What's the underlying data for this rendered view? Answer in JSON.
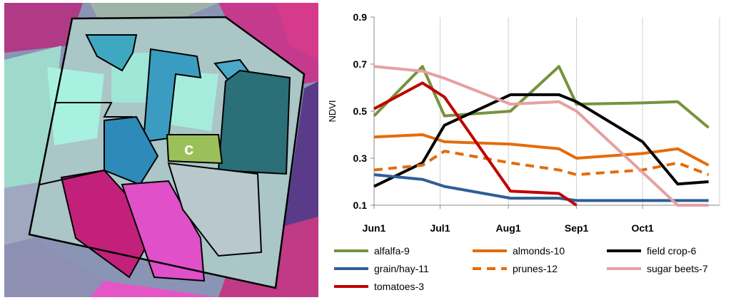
{
  "figure": {
    "map": {
      "label": "c",
      "colors": {
        "magenta": "#c23a8f",
        "cyan": "#8fe8d8",
        "teal": "#2f7f8a",
        "blue": "#2e8fb8",
        "green_field": "#9bc05a",
        "pink": "#e84bc8",
        "gray": "#9aa6b8",
        "outline": "#000000"
      }
    }
  },
  "chart_data": {
    "type": "line",
    "xlabel": "",
    "ylabel": "NDVI",
    "ylim": [
      0.1,
      0.9
    ],
    "yticks": [
      "0.9",
      "0.7",
      "0.5",
      "0.3",
      "0.1"
    ],
    "xticks": [
      "Jun1",
      "Jul1",
      "Aug1",
      "Sep1",
      "Oct1"
    ],
    "xtick_days": [
      0,
      30,
      61,
      92,
      122
    ],
    "grid": "vertical",
    "legend_placement": "bottom",
    "series": [
      {
        "name": "alfalfa-9",
        "color": "#77933c",
        "dash": false,
        "x": [
          0,
          22,
          32,
          62,
          84,
          92,
          122,
          138,
          152
        ],
        "y": [
          0.48,
          0.69,
          0.48,
          0.5,
          0.69,
          0.53,
          0.535,
          0.54,
          0.43
        ]
      },
      {
        "name": "almonds-10",
        "color": "#e46c0a",
        "dash": false,
        "x": [
          0,
          22,
          32,
          62,
          84,
          92,
          122,
          138,
          152
        ],
        "y": [
          0.39,
          0.4,
          0.37,
          0.36,
          0.34,
          0.3,
          0.32,
          0.34,
          0.27
        ]
      },
      {
        "name": "field crop-6",
        "color": "#000000",
        "dash": false,
        "x": [
          0,
          22,
          32,
          62,
          84,
          92,
          122,
          138,
          152
        ],
        "y": [
          0.18,
          0.28,
          0.44,
          0.57,
          0.57,
          0.54,
          0.37,
          0.19,
          0.2
        ]
      },
      {
        "name": "grain/hay-11",
        "color": "#2e5e96",
        "dash": false,
        "x": [
          0,
          22,
          32,
          62,
          84,
          92,
          122,
          138,
          152
        ],
        "y": [
          0.23,
          0.21,
          0.18,
          0.13,
          0.13,
          0.12,
          0.12,
          0.12,
          0.12
        ]
      },
      {
        "name": "prunes-12",
        "color": "#e46c0a",
        "dash": true,
        "x": [
          0,
          22,
          32,
          62,
          84,
          92,
          122,
          138,
          152
        ],
        "y": [
          0.25,
          0.27,
          0.33,
          0.28,
          0.25,
          0.23,
          0.25,
          0.28,
          0.23
        ]
      },
      {
        "name": "sugar beets-7",
        "color": "#e6a0a0",
        "dash": false,
        "x": [
          0,
          22,
          32,
          62,
          84,
          92,
          122,
          138,
          152
        ],
        "y": [
          0.69,
          0.67,
          0.64,
          0.53,
          0.54,
          0.5,
          0.24,
          0.1,
          0.1
        ]
      },
      {
        "name": "tomatoes-3",
        "color": "#c00000",
        "dash": false,
        "x": [
          0,
          22,
          32,
          62,
          84,
          92
        ],
        "y": [
          0.51,
          0.62,
          0.56,
          0.16,
          0.15,
          0.1
        ]
      }
    ]
  }
}
